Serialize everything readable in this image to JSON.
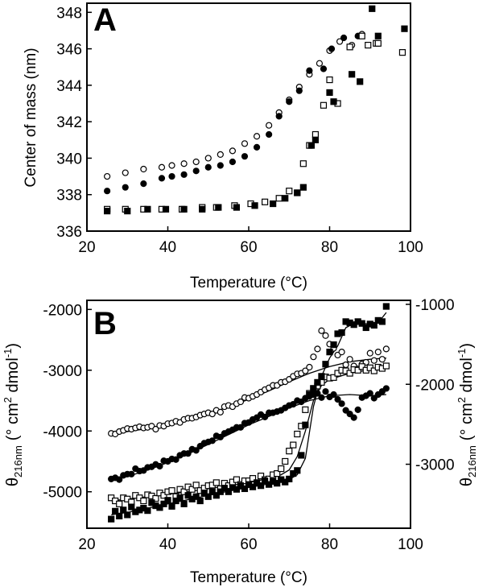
{
  "chart_data": [
    {
      "type": "scatter",
      "panel": "A",
      "xlabel": "Temperature (°C)",
      "ylabel": "Center of mass (nm)",
      "xlim": [
        20,
        100
      ],
      "ylim": [
        336,
        348.5
      ],
      "xticks": [
        20,
        40,
        60,
        80,
        100
      ],
      "yticks": [
        336,
        338,
        340,
        342,
        344,
        346,
        348
      ],
      "grid": false,
      "series": [
        {
          "marker": "open-circle",
          "x": [
            25,
            29.5,
            34,
            38.5,
            41,
            44,
            47,
            50,
            53,
            56,
            59,
            62,
            65,
            67.5,
            70,
            72.5,
            75,
            77.5,
            80,
            82.5,
            85.5,
            88
          ],
          "y": [
            339,
            339.2,
            339.4,
            339.5,
            339.6,
            339.7,
            339.8,
            340,
            340.2,
            340.4,
            340.8,
            341.2,
            341.8,
            342.5,
            343.2,
            343.9,
            344.6,
            345.2,
            345.9,
            346.4,
            346.2,
            346.8
          ]
        },
        {
          "marker": "filled-circle",
          "x": [
            25,
            29.5,
            34,
            38.5,
            41,
            44,
            47,
            50,
            53,
            56,
            59,
            62,
            65,
            67.5,
            70,
            72.5,
            75,
            78.5,
            80.5,
            83.5,
            87
          ],
          "y": [
            338.2,
            338.4,
            338.6,
            338.9,
            339,
            339.1,
            339.3,
            339.5,
            339.6,
            339.8,
            340.1,
            340.6,
            341.3,
            342.3,
            343.1,
            343.7,
            344.8,
            344.9,
            346,
            346.6,
            346.7
          ]
        },
        {
          "marker": "open-square",
          "x": [
            25,
            29.5,
            34,
            38.5,
            43.5,
            48.5,
            52,
            56.5,
            60.5,
            64,
            67.5,
            70,
            72,
            73.5,
            75,
            76.5,
            78.5,
            80,
            82,
            85,
            88,
            89.5,
            91.5,
            92,
            98
          ],
          "y": [
            337.2,
            337.2,
            337.2,
            337.2,
            337.2,
            337.3,
            337.3,
            337.4,
            337.5,
            337.6,
            337.8,
            338.2,
            338.1,
            339.7,
            340.7,
            341.3,
            342.9,
            344.3,
            343,
            346.1,
            346.7,
            346.2,
            346.3,
            346.3,
            345.8
          ]
        },
        {
          "marker": "filled-square",
          "x": [
            25,
            30,
            35,
            39.5,
            44,
            48.5,
            52.5,
            57,
            61.5,
            66,
            69,
            72,
            73.5,
            75.5,
            76.5,
            80,
            81,
            85.5,
            87.5,
            90.5,
            92,
            98.5
          ],
          "y": [
            337.1,
            337.1,
            337.2,
            337.2,
            337.2,
            337.2,
            337.3,
            337.3,
            337.4,
            337.5,
            337.8,
            338.1,
            338.4,
            340.7,
            341,
            343.6,
            343.1,
            344.6,
            344.2,
            348.2,
            346.7,
            347.1
          ]
        }
      ]
    },
    {
      "type": "line",
      "panel": "B",
      "xlabel": "Temperature (°C)",
      "ylabel_left_symbol": "θ",
      "ylabel_left_sub": "216nm",
      "ylabel_left_unit": "(° cm",
      "ylabel_left_sup": "2",
      "ylabel_left_unit2": " dmol",
      "ylabel_left_sup2": "-1",
      "ylabel_left_close": ")",
      "ylabel_right_symbol": "θ",
      "ylabel_right_sub": "216nm",
      "ylabel_right_unit": "(° cm",
      "ylabel_right_sup": "2",
      "ylabel_right_unit2": " dmol",
      "ylabel_right_sup2": "-1",
      "ylabel_right_close": ")",
      "xlim": [
        20,
        100
      ],
      "ylim_left": [
        -5600,
        -1850
      ],
      "ylim_right": [
        -3800,
        -950
      ],
      "xticks": [
        20,
        40,
        60,
        80,
        100
      ],
      "yticks_left": [
        -2000,
        -3000,
        -4000,
        -5000
      ],
      "yticks_right": [
        -1000,
        -2000,
        -3000
      ],
      "grid": false,
      "series": [
        {
          "marker": "open-circle",
          "axis": "left",
          "fit_x": [
            26,
            30,
            35,
            40,
            45,
            50,
            55,
            60,
            65,
            70,
            75,
            80,
            85,
            90,
            94
          ],
          "fit_y": [
            -4060,
            -4010,
            -3960,
            -3900,
            -3820,
            -3720,
            -3600,
            -3480,
            -3340,
            -3190,
            -3050,
            -2940,
            -2860,
            -2820,
            -2800
          ],
          "x": [
            26,
            27,
            28,
            29,
            30,
            31,
            32,
            33,
            34,
            35,
            36,
            37,
            38,
            39,
            40,
            41,
            42,
            43,
            44,
            45,
            46,
            47,
            48,
            49,
            50,
            51,
            52,
            53,
            54,
            55,
            56,
            57,
            58,
            59,
            60,
            61,
            62,
            63,
            64,
            65,
            66,
            67,
            68,
            69,
            70,
            71,
            72,
            73,
            74,
            75,
            76,
            77,
            78,
            79,
            80,
            81,
            82,
            83,
            84,
            85,
            86,
            87,
            88,
            89,
            90,
            91,
            92,
            93,
            94
          ],
          "y": [
            -4040,
            -4050,
            -4010,
            -3990,
            -3960,
            -3970,
            -3950,
            -3930,
            -3950,
            -3940,
            -3920,
            -3970,
            -3910,
            -3920,
            -3880,
            -3870,
            -3840,
            -3860,
            -3810,
            -3790,
            -3790,
            -3770,
            -3740,
            -3720,
            -3700,
            -3720,
            -3660,
            -3690,
            -3600,
            -3580,
            -3600,
            -3550,
            -3520,
            -3450,
            -3460,
            -3430,
            -3400,
            -3360,
            -3320,
            -3290,
            -3250,
            -3250,
            -3200,
            -3190,
            -3150,
            -3100,
            -3060,
            -3050,
            -3010,
            -2950,
            -2780,
            -2650,
            -2350,
            -2430,
            -2570,
            -2640,
            -2750,
            -2700,
            -2910,
            -2820,
            -2930,
            -2980,
            -2900,
            -2870,
            -2720,
            -2840,
            -2700,
            -2820,
            -2650
          ]
        },
        {
          "marker": "filled-circle",
          "axis": "left",
          "fit_x": [
            26,
            30,
            35,
            40,
            45,
            50,
            55,
            60,
            65,
            70,
            75,
            80,
            85,
            90,
            94
          ],
          "fit_y": [
            -4800,
            -4750,
            -4640,
            -4520,
            -4380,
            -4220,
            -4060,
            -3900,
            -3760,
            -3620,
            -3500,
            -3420,
            -3400,
            -3420,
            -3400
          ],
          "x": [
            26,
            27,
            28,
            29,
            30,
            31,
            32,
            33,
            34,
            35,
            36,
            37,
            38,
            39,
            40,
            41,
            42,
            43,
            44,
            45,
            46,
            47,
            48,
            49,
            50,
            51,
            52,
            53,
            54,
            55,
            56,
            57,
            58,
            59,
            60,
            61,
            62,
            63,
            64,
            65,
            66,
            67,
            68,
            69,
            70,
            71,
            72,
            73,
            74,
            75,
            76,
            77,
            78,
            79,
            80,
            81,
            82,
            83,
            84,
            85,
            86,
            87,
            88,
            89,
            90,
            91,
            92,
            93,
            94
          ],
          "y": [
            -4790,
            -4770,
            -4800,
            -4730,
            -4710,
            -4710,
            -4620,
            -4660,
            -4650,
            -4600,
            -4590,
            -4550,
            -4580,
            -4490,
            -4500,
            -4460,
            -4470,
            -4400,
            -4370,
            -4370,
            -4300,
            -4320,
            -4250,
            -4200,
            -4180,
            -4160,
            -4080,
            -4100,
            -4040,
            -4010,
            -3980,
            -3940,
            -3940,
            -3870,
            -3860,
            -3810,
            -3780,
            -3730,
            -3770,
            -3700,
            -3700,
            -3680,
            -3660,
            -3620,
            -3580,
            -3560,
            -3500,
            -3520,
            -3460,
            -3430,
            -3400,
            -3380,
            -3450,
            -3350,
            -3440,
            -3400,
            -3480,
            -3550,
            -3660,
            -3720,
            -3780,
            -3650,
            -3450,
            -3420,
            -3380,
            -3460,
            -3400,
            -3350,
            -3300
          ]
        },
        {
          "marker": "open-square",
          "axis": "left",
          "fit_x": [
            26,
            30,
            35,
            40,
            45,
            50,
            55,
            60,
            65,
            68,
            70,
            72,
            74,
            76,
            78,
            80,
            85,
            90,
            94
          ],
          "fit_y": [
            -5150,
            -5120,
            -5080,
            -5040,
            -5000,
            -4950,
            -4900,
            -4850,
            -4780,
            -4720,
            -4640,
            -4420,
            -4000,
            -3500,
            -3250,
            -3150,
            -3050,
            -2990,
            -2960
          ],
          "x": [
            26,
            27,
            28,
            29,
            30,
            31,
            32,
            33,
            34,
            35,
            36,
            37,
            38,
            39,
            40,
            41,
            42,
            43,
            44,
            45,
            46,
            47,
            48,
            49,
            50,
            51,
            52,
            53,
            54,
            55,
            56,
            57,
            58,
            59,
            60,
            61,
            62,
            63,
            64,
            65,
            66,
            67,
            68,
            69,
            70,
            71,
            72,
            73,
            74,
            75,
            76,
            77,
            78,
            79,
            80,
            81,
            82,
            83,
            84,
            85,
            86,
            87,
            88,
            89,
            90,
            91,
            92,
            93,
            94
          ],
          "y": [
            -5100,
            -5150,
            -5200,
            -5100,
            -5120,
            -5170,
            -5060,
            -5100,
            -5150,
            -5050,
            -5070,
            -5110,
            -5020,
            -5060,
            -5000,
            -4980,
            -5080,
            -4960,
            -5000,
            -4920,
            -4960,
            -4890,
            -4980,
            -4940,
            -4900,
            -4890,
            -4850,
            -4950,
            -4860,
            -4900,
            -4840,
            -4800,
            -4880,
            -4820,
            -4820,
            -4780,
            -4860,
            -4740,
            -4800,
            -4790,
            -4720,
            -4700,
            -4620,
            -4500,
            -4330,
            -4230,
            -4050,
            -3920,
            -3650,
            -3380,
            -3300,
            -3260,
            -3200,
            -3110,
            -3130,
            -3120,
            -3050,
            -3000,
            -3010,
            -3050,
            -2990,
            -3000,
            -2940,
            -3000,
            -2960,
            -3010,
            -2950,
            -2970,
            -2930
          ]
        },
        {
          "marker": "filled-square",
          "axis": "left",
          "fit_x": [
            26,
            30,
            35,
            40,
            45,
            50,
            55,
            60,
            65,
            70,
            72,
            74,
            76,
            78,
            80,
            82,
            84,
            86,
            88,
            90,
            92,
            94
          ],
          "fit_y": [
            -5380,
            -5340,
            -5270,
            -5200,
            -5130,
            -5060,
            -4990,
            -4930,
            -4870,
            -4800,
            -4720,
            -4450,
            -3600,
            -3100,
            -2800,
            -2600,
            -2300,
            -2230,
            -2230,
            -2240,
            -2220,
            -2050
          ],
          "x": [
            26,
            27,
            28,
            29,
            30,
            31,
            32,
            33,
            34,
            35,
            36,
            37,
            38,
            39,
            40,
            41,
            42,
            43,
            44,
            45,
            46,
            47,
            48,
            49,
            50,
            51,
            52,
            53,
            54,
            55,
            56,
            57,
            58,
            59,
            60,
            61,
            62,
            63,
            64,
            65,
            66,
            67,
            68,
            69,
            70,
            71,
            72,
            73,
            74,
            75,
            76,
            77,
            78,
            79,
            80,
            81,
            82,
            83,
            84,
            85,
            86,
            87,
            88,
            89,
            90,
            91,
            92,
            93,
            94
          ],
          "y": [
            -5450,
            -5320,
            -5400,
            -5300,
            -5380,
            -5250,
            -5330,
            -5300,
            -5270,
            -5310,
            -5180,
            -5230,
            -5260,
            -5200,
            -5140,
            -5240,
            -5150,
            -5100,
            -5200,
            -5060,
            -5120,
            -5080,
            -5150,
            -5020,
            -5080,
            -5000,
            -5060,
            -5000,
            -4940,
            -5000,
            -4930,
            -4960,
            -4900,
            -4950,
            -4880,
            -4920,
            -4850,
            -4900,
            -4820,
            -4880,
            -4830,
            -4860,
            -4800,
            -4840,
            -4790,
            -4700,
            -4650,
            -4400,
            -3900,
            -3400,
            -3300,
            -3200,
            -3100,
            -2900,
            -2700,
            -2580,
            -2400,
            -2380,
            -2200,
            -2220,
            -2250,
            -2200,
            -2230,
            -2300,
            -2240,
            -2260,
            -2180,
            -2200,
            -1950
          ]
        }
      ]
    }
  ]
}
